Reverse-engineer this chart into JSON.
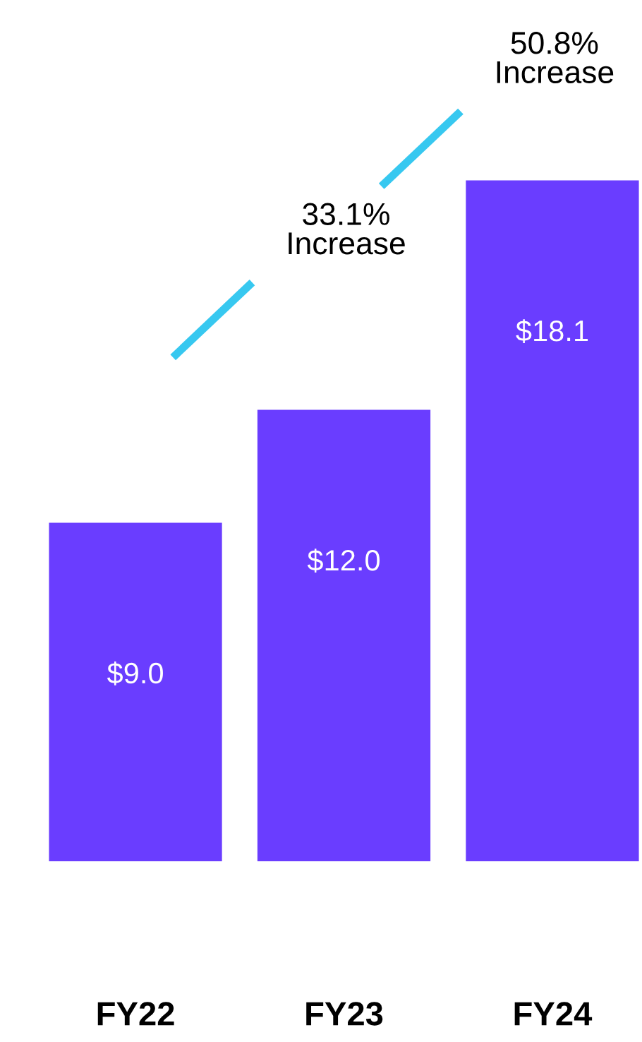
{
  "chart_data": {
    "type": "bar",
    "categories": [
      "FY22",
      "FY23",
      "FY24"
    ],
    "values": [
      9.0,
      12.0,
      18.1
    ],
    "value_labels": [
      "$9.0",
      "$12.0",
      "$18.1"
    ],
    "color": "#6a3dff",
    "annotations": [
      "33.1%\nIncrease",
      "50.8%\nIncrease"
    ]
  }
}
